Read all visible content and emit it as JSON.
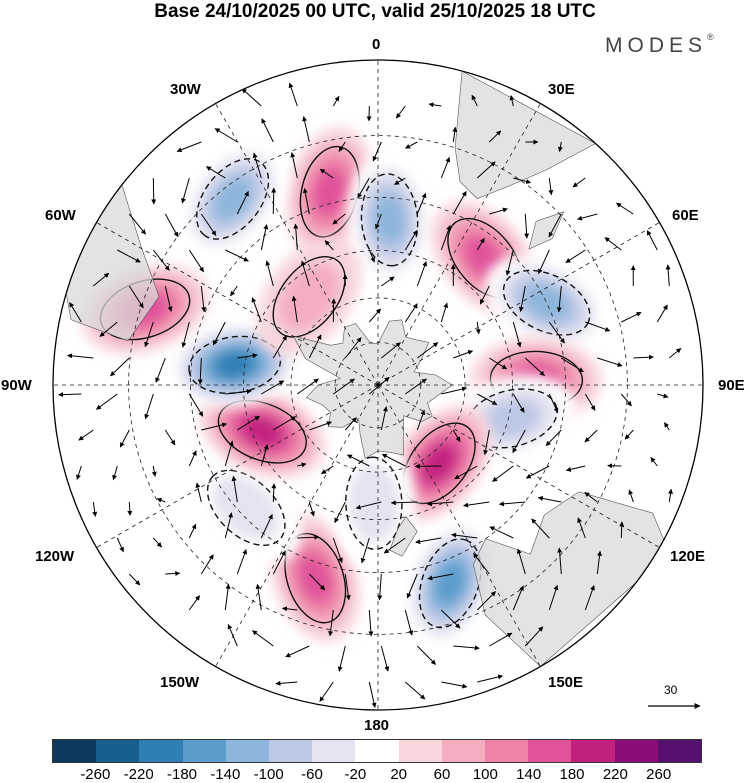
{
  "title": "Base 24/10/2025 00 UTC, valid 25/10/2025 18 UTC",
  "brand": {
    "name": "MODES",
    "mark": "®"
  },
  "longitude_labels": {
    "n0": "0",
    "n30e": "30E",
    "n30w": "30W",
    "n60e": "60E",
    "n60w": "60W",
    "n90e": "90E",
    "n90w": "90W",
    "n120e": "120E",
    "n120w": "120W",
    "n150e": "150E",
    "n150w": "150W",
    "n180": "180"
  },
  "reference_vector": {
    "value": "30"
  },
  "colorbar": {
    "colors": [
      "#0d3a5c",
      "#175f8e",
      "#2f7fb5",
      "#5a9ccc",
      "#8db6dc",
      "#bcc8e6",
      "#e3e3f1",
      "#ffffff",
      "#f8d6dc",
      "#f4aec0",
      "#ee82a8",
      "#e0539a",
      "#c2207f",
      "#8a0d78",
      "#551070"
    ],
    "ticks": [
      "-260",
      "-220",
      "-180",
      "-140",
      "-100",
      "-60",
      "-20",
      "20",
      "60",
      "100",
      "140",
      "180",
      "220",
      "260"
    ]
  },
  "anomaly_centers": [
    {
      "name": "pos-atlantic-north",
      "lon": -14,
      "colat": 63,
      "value": 130
    },
    {
      "name": "neg-south-atlantic",
      "lon": 4,
      "colat": 54,
      "value": -120
    },
    {
      "name": "pos-southern-africa",
      "lon": 40,
      "colat": 54,
      "value": 150
    },
    {
      "name": "neg-indian-sw",
      "lon": 64,
      "colat": 60,
      "value": -130
    },
    {
      "name": "pos-indian-central",
      "lon": 88,
      "colat": 52,
      "value": 150
    },
    {
      "name": "neg-indian-east",
      "lon": 104,
      "colat": 46,
      "value": -90
    },
    {
      "name": "pos-australia-south",
      "lon": 142,
      "colat": 34,
      "value": 180
    },
    {
      "name": "neg-tasman",
      "lon": 160,
      "colat": 66,
      "value": -170
    },
    {
      "name": "pos-south-pacific",
      "lon": -162,
      "colat": 64,
      "value": 140
    },
    {
      "name": "neg-pacific-small",
      "lon": -178,
      "colat": 40,
      "value": -70
    },
    {
      "name": "neg-pacific-east",
      "lon": -133,
      "colat": 58,
      "value": -60
    },
    {
      "name": "pos-amundsen",
      "lon": -112,
      "colat": 42,
      "value": 170
    },
    {
      "name": "neg-bellingshausen",
      "lon": -82,
      "colat": 48,
      "value": -200
    },
    {
      "name": "pos-east-pacific",
      "lon": -72,
      "colat": 74,
      "value": 130
    },
    {
      "name": "neg-south-america",
      "lon": -38,
      "colat": 72,
      "value": -150
    },
    {
      "name": "pos-weddell",
      "lon": -38,
      "colat": 38,
      "value": 60
    }
  ]
}
